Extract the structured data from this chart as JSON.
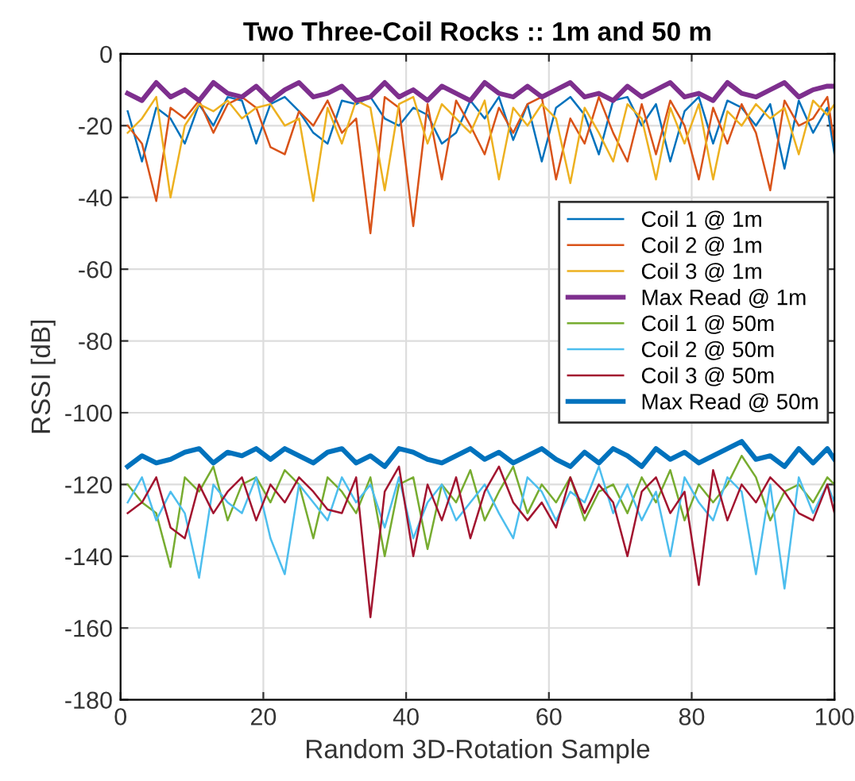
{
  "chart_data": {
    "type": "line",
    "title": "Two Three-Coil Rocks :: 1m and 50 m",
    "xlabel": "Random 3D-Rotation Sample",
    "ylabel": "RSSI [dB]",
    "x": [
      1,
      3,
      5,
      7,
      9,
      11,
      13,
      15,
      17,
      19,
      21,
      23,
      25,
      27,
      29,
      31,
      33,
      35,
      37,
      39,
      41,
      43,
      45,
      47,
      49,
      51,
      53,
      55,
      57,
      59,
      61,
      63,
      65,
      67,
      69,
      71,
      73,
      75,
      77,
      79,
      81,
      83,
      85,
      87,
      89,
      91,
      93,
      95,
      97,
      99,
      100
    ],
    "xlim": [
      0,
      100
    ],
    "ylim": [
      -180,
      0
    ],
    "xticks": [
      0,
      20,
      40,
      60,
      80,
      100
    ],
    "yticks": [
      -180,
      -160,
      -140,
      -120,
      -100,
      -80,
      -60,
      -40,
      -20,
      0
    ],
    "grid": true,
    "legend": "right",
    "marker": "none",
    "line_style": "solid",
    "series": [
      {
        "name": "Coil 1 @ 1m",
        "color": "#0072bd",
        "values": [
          -16,
          -30,
          -15,
          -18,
          -25,
          -14,
          -20,
          -12,
          -13,
          -25,
          -14,
          -12,
          -16,
          -22,
          -25,
          -13,
          -14,
          -12,
          -18,
          -20,
          -15,
          -17,
          -25,
          -22,
          -13,
          -18,
          -12,
          -24,
          -14,
          -30,
          -15,
          -12,
          -17,
          -28,
          -13,
          -12,
          -20,
          -14,
          -30,
          -16,
          -12,
          -25,
          -13,
          -15,
          -20,
          -14,
          -32,
          -13,
          -22,
          -15,
          -28
        ]
      },
      {
        "name": "Coil 2 @ 1m",
        "color": "#d95319",
        "values": [
          -20,
          -25,
          -41,
          -15,
          -18,
          -13,
          -22,
          -14,
          -12,
          -15,
          -26,
          -28,
          -16,
          -20,
          -13,
          -22,
          -18,
          -50,
          -12,
          -15,
          -48,
          -14,
          -35,
          -13,
          -20,
          -28,
          -15,
          -22,
          -14,
          -12,
          -35,
          -18,
          -25,
          -12,
          -22,
          -30,
          -14,
          -28,
          -13,
          -20,
          -35,
          -15,
          -25,
          -14,
          -22,
          -38,
          -13,
          -20,
          -18,
          -12,
          -25
        ]
      },
      {
        "name": "Coil 3 @ 1m",
        "color": "#edb120",
        "values": [
          -22,
          -18,
          -12,
          -40,
          -20,
          -14,
          -16,
          -13,
          -18,
          -15,
          -14,
          -20,
          -18,
          -41,
          -15,
          -25,
          -13,
          -15,
          -38,
          -14,
          -12,
          -25,
          -14,
          -18,
          -22,
          -13,
          -35,
          -15,
          -20,
          -14,
          -18,
          -36,
          -15,
          -22,
          -30,
          -14,
          -18,
          -35,
          -15,
          -25,
          -14,
          -35,
          -16,
          -20,
          -14,
          -18,
          -15,
          -28,
          -13,
          -17,
          -14
        ]
      },
      {
        "name": "Max Read @ 1m",
        "color": "#7e2f8e",
        "values": [
          -11,
          -13,
          -8,
          -12,
          -10,
          -13,
          -8,
          -11,
          -12,
          -9,
          -13,
          -10,
          -8,
          -12,
          -11,
          -9,
          -13,
          -12,
          -8,
          -12,
          -10,
          -13,
          -9,
          -11,
          -13,
          -8,
          -11,
          -12,
          -9,
          -12,
          -10,
          -8,
          -12,
          -11,
          -13,
          -9,
          -12,
          -10,
          -8,
          -12,
          -11,
          -13,
          -8,
          -11,
          -12,
          -10,
          -8,
          -12,
          -10,
          -9,
          -9
        ]
      },
      {
        "name": "Coil 1 @ 50m",
        "color": "#77ac30",
        "values": [
          -120,
          -125,
          -128,
          -143,
          -118,
          -122,
          -115,
          -130,
          -120,
          -118,
          -125,
          -116,
          -120,
          -135,
          -118,
          -122,
          -128,
          -118,
          -140,
          -120,
          -118,
          -138,
          -120,
          -125,
          -116,
          -130,
          -122,
          -115,
          -128,
          -120,
          -125,
          -118,
          -130,
          -122,
          -120,
          -128,
          -118,
          -125,
          -116,
          -130,
          -120,
          -125,
          -120,
          -112,
          -118,
          -130,
          -122,
          -120,
          -125,
          -118,
          -120
        ]
      },
      {
        "name": "Coil 2 @ 50m",
        "color": "#4dbeee",
        "values": [
          -125,
          -118,
          -130,
          -122,
          -128,
          -146,
          -120,
          -125,
          -128,
          -118,
          -135,
          -145,
          -120,
          -125,
          -130,
          -118,
          -125,
          -120,
          -132,
          -118,
          -135,
          -125,
          -120,
          -130,
          -125,
          -120,
          -128,
          -135,
          -118,
          -122,
          -130,
          -122,
          -125,
          -115,
          -128,
          -120,
          -130,
          -122,
          -140,
          -118,
          -125,
          -130,
          -118,
          -122,
          -145,
          -120,
          -149,
          -118,
          -128,
          -120,
          -125
        ]
      },
      {
        "name": "Coil 3 @ 50m",
        "color": "#a2142f",
        "values": [
          -128,
          -125,
          -118,
          -132,
          -135,
          -120,
          -128,
          -122,
          -118,
          -130,
          -120,
          -125,
          -118,
          -122,
          -127,
          -128,
          -118,
          -157,
          -122,
          -115,
          -140,
          -120,
          -130,
          -118,
          -135,
          -122,
          -115,
          -125,
          -130,
          -125,
          -132,
          -118,
          -128,
          -120,
          -125,
          -140,
          -122,
          -118,
          -128,
          -122,
          -148,
          -116,
          -130,
          -120,
          -125,
          -118,
          -122,
          -128,
          -130,
          -120,
          -128
        ]
      },
      {
        "name": "Max Read @ 50m",
        "color": "#0072bd",
        "values": [
          -115,
          -112,
          -114,
          -113,
          -111,
          -110,
          -114,
          -111,
          -112,
          -110,
          -113,
          -110,
          -112,
          -114,
          -111,
          -110,
          -114,
          -112,
          -115,
          -110,
          -111,
          -113,
          -114,
          -112,
          -110,
          -113,
          -111,
          -114,
          -112,
          -110,
          -113,
          -115,
          -111,
          -114,
          -110,
          -112,
          -115,
          -110,
          -113,
          -111,
          -114,
          -112,
          -110,
          -108,
          -113,
          -112,
          -115,
          -110,
          -114,
          -110,
          -113
        ]
      }
    ]
  }
}
